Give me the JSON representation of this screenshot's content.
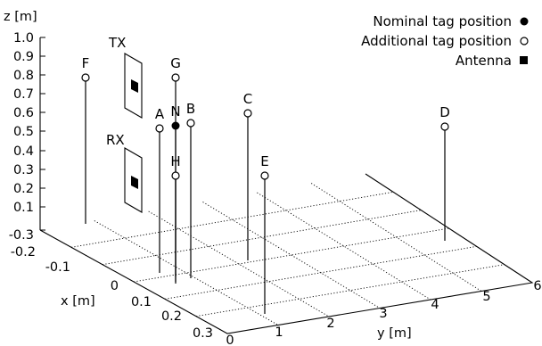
{
  "labels": {
    "z_axis": "z [m]",
    "x_axis": "x [m]",
    "y_axis": "y [m]"
  },
  "z_ticks": [
    "1.0",
    "0.9",
    "0.8",
    "0.7",
    "0.6",
    "0.5",
    "0.4",
    "0.3",
    "0.2",
    "0.1",
    "-0.3"
  ],
  "x_ticks": [
    "-0.2",
    "-0.1",
    "0",
    "0.1",
    "0.2",
    "0.3"
  ],
  "y_ticks": [
    "0",
    "1",
    "2",
    "3",
    "4",
    "5",
    "6"
  ],
  "antenna_labels": {
    "tx": "TX",
    "rx": "RX"
  },
  "legend": {
    "nominal": "Nominal tag position",
    "additional": "Additional tag position",
    "antenna": "Antenna"
  },
  "points": [
    {
      "id": "F",
      "label": "F",
      "kind": "additional"
    },
    {
      "id": "G",
      "label": "G",
      "kind": "additional"
    },
    {
      "id": "A",
      "label": "A",
      "kind": "additional"
    },
    {
      "id": "N",
      "label": "N",
      "kind": "nominal"
    },
    {
      "id": "B",
      "label": "B",
      "kind": "additional"
    },
    {
      "id": "H",
      "label": "H",
      "kind": "additional"
    },
    {
      "id": "C",
      "label": "C",
      "kind": "additional"
    },
    {
      "id": "E",
      "label": "E",
      "kind": "additional"
    },
    {
      "id": "D",
      "label": "D",
      "kind": "additional"
    }
  ]
}
